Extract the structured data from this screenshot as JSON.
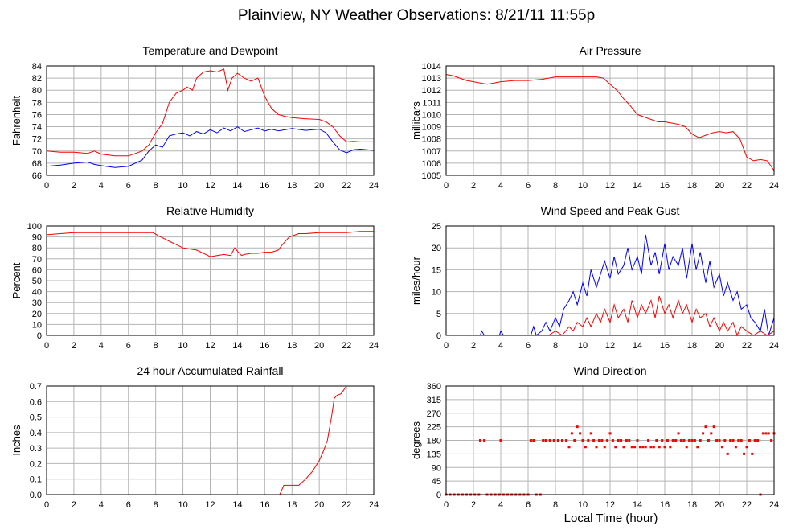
{
  "page": {
    "title": "Plainview, NY Weather Observations: 8/21/11 11:55p",
    "xlabel": "Local Time (hour)"
  },
  "chart_data": [
    {
      "id": "temp",
      "type": "line",
      "title": "Temperature and Dewpoint",
      "ylabel": "Fahrenheit",
      "xlim": [
        0,
        24
      ],
      "ylim": [
        66,
        84
      ],
      "xticks": [
        0,
        2,
        4,
        6,
        8,
        10,
        12,
        14,
        16,
        18,
        20,
        22,
        24
      ],
      "yticks": [
        66,
        68,
        70,
        72,
        74,
        76,
        78,
        80,
        82,
        84
      ],
      "grid": true,
      "series": [
        {
          "color": "#ff0000",
          "x": [
            0,
            1,
            2,
            3,
            3.5,
            4,
            5,
            6,
            7,
            7.5,
            8,
            8.5,
            9,
            9.5,
            10,
            10.3,
            10.7,
            11,
            11.5,
            12,
            12.5,
            13,
            13.3,
            13.6,
            14,
            14.5,
            15,
            15.5,
            16,
            16.5,
            17,
            17.5,
            18,
            19,
            20,
            20.5,
            21,
            21.5,
            22,
            22.5,
            23,
            24
          ],
          "y": [
            70,
            69.8,
            69.8,
            69.6,
            70,
            69.5,
            69.2,
            69.2,
            70,
            71,
            73,
            74.5,
            78,
            79.5,
            80,
            80.5,
            80,
            82,
            83,
            83.2,
            83,
            83.5,
            80,
            82,
            82.8,
            82,
            81.5,
            82,
            79,
            77,
            76,
            75.7,
            75.5,
            75.3,
            75.2,
            74.8,
            74,
            72.5,
            71.5,
            71.6,
            71.5,
            71.5
          ]
        },
        {
          "color": "#0000ff",
          "x": [
            0,
            1,
            2,
            3,
            3.5,
            4,
            5,
            6,
            7,
            7.5,
            8,
            8.5,
            9,
            9.5,
            10,
            10.5,
            11,
            11.5,
            12,
            12.5,
            13,
            13.5,
            14,
            14.5,
            15,
            15.5,
            16,
            16.5,
            17,
            17.5,
            18,
            19,
            20,
            20.5,
            21,
            21.5,
            22,
            22.5,
            23,
            24
          ],
          "y": [
            67.5,
            67.7,
            68,
            68.2,
            67.8,
            67.6,
            67.3,
            67.5,
            68.5,
            70,
            71,
            70.6,
            72.5,
            72.8,
            73,
            72.5,
            73.2,
            72.8,
            73.5,
            73,
            73.8,
            73.3,
            74,
            73.2,
            73.5,
            73.8,
            73.3,
            73.6,
            73.3,
            73.5,
            73.7,
            73.4,
            73.6,
            73,
            71.5,
            70.2,
            69.7,
            70.2,
            70.3,
            70.1
          ]
        }
      ]
    },
    {
      "id": "pressure",
      "type": "line",
      "title": "Air Pressure",
      "ylabel": "millibars",
      "xlim": [
        0,
        24
      ],
      "ylim": [
        1005,
        1014
      ],
      "xticks": [
        0,
        2,
        4,
        6,
        8,
        10,
        12,
        14,
        16,
        18,
        20,
        22,
        24
      ],
      "yticks": [
        1005,
        1006,
        1007,
        1008,
        1009,
        1010,
        1011,
        1012,
        1013,
        1014
      ],
      "grid": true,
      "series": [
        {
          "color": "#ff0000",
          "x": [
            0,
            0.5,
            1,
            1.5,
            2,
            2.5,
            3,
            3.5,
            4,
            5,
            6,
            7,
            7.5,
            8,
            9,
            10,
            11,
            11.5,
            12,
            12.5,
            13,
            13.5,
            14,
            14.5,
            15,
            15.5,
            16,
            16.5,
            17,
            17.5,
            18,
            18.5,
            19,
            19.5,
            20,
            20.5,
            21,
            21.5,
            22,
            22.5,
            23,
            23.5,
            24
          ],
          "y": [
            1013.3,
            1013.2,
            1013,
            1012.8,
            1012.7,
            1012.6,
            1012.5,
            1012.6,
            1012.7,
            1012.8,
            1012.8,
            1012.9,
            1013,
            1013.1,
            1013.1,
            1013.1,
            1013.1,
            1013,
            1012.5,
            1012,
            1011.3,
            1010.7,
            1010,
            1009.8,
            1009.6,
            1009.4,
            1009.4,
            1009.3,
            1009.2,
            1009,
            1008.4,
            1008.1,
            1008.3,
            1008.5,
            1008.6,
            1008.5,
            1008.6,
            1008,
            1006.5,
            1006.2,
            1006.3,
            1006.2,
            1005.4
          ]
        }
      ]
    },
    {
      "id": "humidity",
      "type": "line",
      "title": "Relative Humidity",
      "ylabel": "Percent",
      "xlim": [
        0,
        24
      ],
      "ylim": [
        0,
        100
      ],
      "xticks": [
        0,
        2,
        4,
        6,
        8,
        10,
        12,
        14,
        16,
        18,
        20,
        22,
        24
      ],
      "yticks": [
        0,
        10,
        20,
        30,
        40,
        50,
        60,
        70,
        80,
        90,
        100
      ],
      "grid": true,
      "series": [
        {
          "color": "#ff0000",
          "x": [
            0,
            1,
            2,
            3,
            4,
            5,
            6,
            7,
            7.8,
            8.2,
            8.7,
            9,
            9.5,
            10,
            10.5,
            11,
            11.5,
            12,
            12.5,
            13,
            13.5,
            13.8,
            14,
            14.3,
            14.5,
            15,
            15.5,
            16,
            16.5,
            17,
            17.3,
            17.8,
            18.5,
            19,
            20,
            21,
            22,
            23,
            24
          ],
          "y": [
            92,
            93,
            94,
            94,
            94,
            94,
            94,
            94,
            94,
            91,
            88,
            86,
            83,
            80,
            79,
            78,
            75,
            72,
            73,
            74,
            73,
            80,
            77,
            73,
            74,
            75,
            75,
            76,
            76,
            78,
            83,
            90,
            93,
            93,
            94,
            94,
            94,
            95,
            95
          ]
        }
      ]
    },
    {
      "id": "wind",
      "type": "line",
      "title": "Wind Speed and Peak Gust",
      "ylabel": "miles/hour",
      "xlim": [
        0,
        24
      ],
      "ylim": [
        0,
        25
      ],
      "xticks": [
        0,
        2,
        4,
        6,
        8,
        10,
        12,
        14,
        16,
        18,
        20,
        22,
        24
      ],
      "yticks": [
        0,
        5,
        10,
        15,
        20,
        25
      ],
      "grid": true,
      "series": [
        {
          "color": "#0000ff",
          "x": [
            0,
            2.5,
            2.6,
            2.8,
            3,
            3.9,
            4,
            4.2,
            6.2,
            6.4,
            6.6,
            7,
            7.3,
            7.6,
            8,
            8.3,
            8.6,
            9,
            9.3,
            9.6,
            10,
            10.3,
            10.6,
            11,
            11.3,
            11.6,
            12,
            12.3,
            12.6,
            13,
            13.3,
            13.6,
            14,
            14.3,
            14.6,
            15,
            15.3,
            15.6,
            16,
            16.3,
            16.6,
            17,
            17.3,
            17.6,
            18,
            18.3,
            18.6,
            19,
            19.3,
            19.6,
            20,
            20.3,
            20.6,
            21,
            21.3,
            21.6,
            22,
            22.3,
            22.6,
            23,
            23.3,
            23.6,
            24
          ],
          "y": [
            0,
            0,
            1,
            0,
            0,
            0,
            1,
            0,
            0,
            2,
            0,
            1,
            3,
            1,
            4,
            2,
            6,
            8,
            10,
            7,
            12,
            9,
            15,
            11,
            14,
            17,
            13,
            18,
            14,
            16,
            20,
            15,
            18,
            14,
            23,
            16,
            19,
            14,
            21,
            15,
            18,
            16,
            20,
            13,
            21,
            15,
            19,
            12,
            17,
            11,
            14,
            9,
            12,
            8,
            10,
            6,
            7,
            4,
            3,
            1,
            6,
            0,
            4
          ]
        },
        {
          "color": "#ff0000",
          "x": [
            0,
            7.5,
            8,
            8.5,
            9,
            9.3,
            9.6,
            10,
            10.3,
            10.6,
            11,
            11.3,
            11.6,
            12,
            12.3,
            12.6,
            13,
            13.3,
            13.6,
            14,
            14.3,
            14.6,
            15,
            15.3,
            15.6,
            16,
            16.3,
            16.6,
            17,
            17.3,
            17.6,
            18,
            18.3,
            18.6,
            19,
            19.3,
            19.6,
            20,
            20.3,
            20.6,
            21,
            21.3,
            21.6,
            22,
            22.5,
            23,
            23.5,
            24
          ],
          "y": [
            0,
            0,
            1,
            0,
            2,
            1,
            3,
            2,
            4,
            2,
            5,
            3,
            6,
            3,
            7,
            4,
            6,
            3,
            8,
            4,
            7,
            5,
            8,
            4,
            9,
            5,
            7,
            4,
            8,
            5,
            7,
            3,
            6,
            4,
            5,
            2,
            4,
            1,
            3,
            1,
            3,
            0,
            2,
            1,
            0,
            1,
            0,
            1
          ]
        }
      ]
    },
    {
      "id": "rain",
      "type": "line",
      "title": "24 hour Accumulated Rainfall",
      "ylabel": "Inches",
      "xlim": [
        0,
        24
      ],
      "ylim": [
        0,
        0.7
      ],
      "xticks": [
        0,
        2,
        4,
        6,
        8,
        10,
        12,
        14,
        16,
        18,
        20,
        22,
        24
      ],
      "yticks": [
        0.0,
        0.1,
        0.2,
        0.3,
        0.4,
        0.5,
        0.6,
        0.7
      ],
      "ytick_labels": [
        "0.0",
        "0.1",
        "0.2",
        "0.3",
        "0.4",
        "0.5",
        "0.6",
        "0.7"
      ],
      "grid": true,
      "series": [
        {
          "color": "#ff0000",
          "x": [
            0,
            17.1,
            17.4,
            18.5,
            19,
            19.5,
            20,
            20.3,
            20.6,
            20.9,
            21.1,
            21.3,
            21.6,
            22,
            22.3,
            24
          ],
          "y": [
            0,
            0,
            0.06,
            0.06,
            0.1,
            0.15,
            0.22,
            0.28,
            0.35,
            0.5,
            0.62,
            0.64,
            0.65,
            0.7,
            0.7,
            0.7
          ]
        }
      ]
    },
    {
      "id": "winddir",
      "type": "scatter",
      "title": "Wind Direction",
      "ylabel": "degrees",
      "xlim": [
        0,
        24
      ],
      "ylim": [
        0,
        360
      ],
      "xticks": [
        0,
        2,
        4,
        6,
        8,
        10,
        12,
        14,
        16,
        18,
        20,
        22,
        24
      ],
      "yticks": [
        0,
        45,
        90,
        135,
        180,
        225,
        270,
        315,
        360
      ],
      "grid": true,
      "series": [
        {
          "color": "#ff0000",
          "x": [
            0,
            0.3,
            0.6,
            0.9,
            1.2,
            1.5,
            1.8,
            2.1,
            2.4,
            2.5,
            2.8,
            3.0,
            3.3,
            3.6,
            3.9,
            4.0,
            4.2,
            4.5,
            4.8,
            5.1,
            5.4,
            5.7,
            6.0,
            6.2,
            6.4,
            6.6,
            6.9,
            7.1,
            7.3,
            7.6,
            7.9,
            8.2,
            8.5,
            8.8,
            9.0,
            9.2,
            9.4,
            9.6,
            9.8,
            10.0,
            10.2,
            10.4,
            10.6,
            10.8,
            11.0,
            11.2,
            11.4,
            11.6,
            11.8,
            12.0,
            12.2,
            12.4,
            12.6,
            12.8,
            13.0,
            13.2,
            13.4,
            13.6,
            13.8,
            14.0,
            14.2,
            14.4,
            14.6,
            14.8,
            15.0,
            15.2,
            15.4,
            15.6,
            15.8,
            16.0,
            16.2,
            16.4,
            16.6,
            16.8,
            17.0,
            17.2,
            17.4,
            17.6,
            17.8,
            18.0,
            18.2,
            18.4,
            18.6,
            18.8,
            19.0,
            19.2,
            19.4,
            19.6,
            19.8,
            20.0,
            20.2,
            20.4,
            20.6,
            20.8,
            21.0,
            21.2,
            21.4,
            21.6,
            21.8,
            22.0,
            22.2,
            22.4,
            22.6,
            22.8,
            23.0,
            23.2,
            23.4,
            23.6,
            23.8,
            24.0
          ],
          "y": [
            0,
            0,
            0,
            0,
            0,
            0,
            0,
            0,
            0,
            180,
            180,
            0,
            0,
            0,
            0,
            180,
            0,
            0,
            0,
            0,
            0,
            0,
            0,
            180,
            180,
            0,
            0,
            180,
            180,
            180,
            180,
            180,
            180,
            180,
            158,
            203,
            180,
            225,
            203,
            180,
            158,
            180,
            203,
            180,
            158,
            180,
            180,
            158,
            180,
            203,
            180,
            158,
            180,
            180,
            158,
            180,
            180,
            158,
            158,
            180,
            158,
            158,
            158,
            180,
            158,
            158,
            180,
            158,
            180,
            158,
            180,
            158,
            180,
            180,
            203,
            180,
            180,
            158,
            180,
            180,
            180,
            158,
            180,
            203,
            225,
            180,
            203,
            225,
            180,
            180,
            158,
            180,
            135,
            180,
            180,
            158,
            180,
            180,
            135,
            158,
            180,
            135,
            180,
            180,
            0,
            203,
            203,
            203,
            180,
            203
          ]
        }
      ]
    }
  ]
}
